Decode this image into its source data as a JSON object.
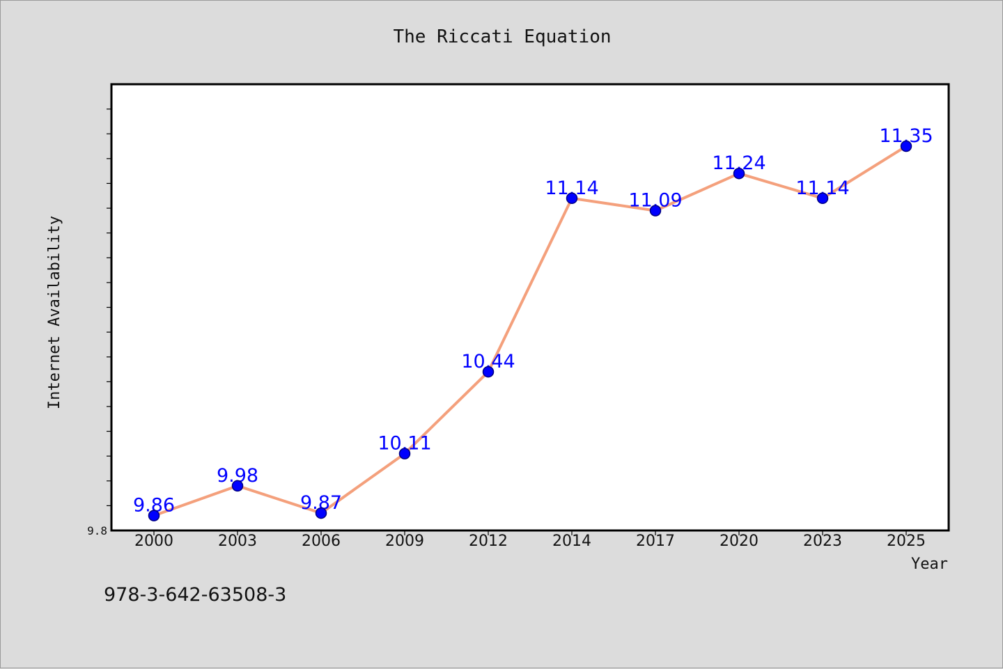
{
  "colors": {
    "background": "#dcdcdc",
    "plot_background": "#ffffff",
    "line": "#f4a07c",
    "marker_fill": "#0000ff",
    "marker_edge": "#000080",
    "data_label": "#0000ff"
  },
  "footer_code": "978-3-642-63508-3",
  "chart_data": {
    "type": "line",
    "title": "The Riccati Equation",
    "xlabel": "Year",
    "ylabel": "Internet Availability",
    "categories": [
      "2000",
      "2003",
      "2006",
      "2009",
      "2012",
      "2014",
      "2017",
      "2020",
      "2023",
      "2025"
    ],
    "series": [
      {
        "values": [
          9.86,
          9.98,
          9.87,
          10.11,
          10.44,
          11.14,
          11.09,
          11.24,
          11.14,
          11.35
        ],
        "data_labels": [
          "9.86",
          "9.98",
          "9.87",
          "10.11",
          "10.44",
          "11.14",
          "11.09",
          "11.24",
          "11.14",
          "11.35"
        ]
      }
    ],
    "ylim": [
      9.8,
      11.6
    ],
    "y_tick_labels": [
      "9.8"
    ],
    "y_minor_step": 0.1,
    "grid": false,
    "legend": "none"
  }
}
